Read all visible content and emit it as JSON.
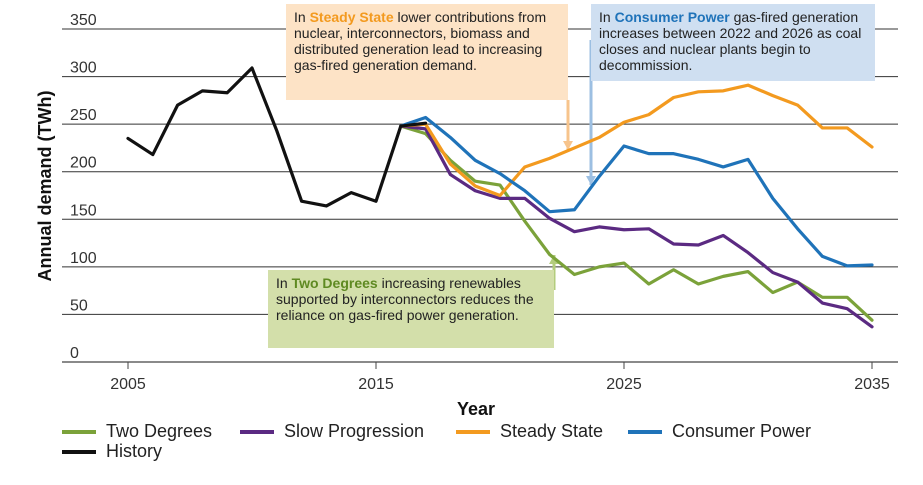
{
  "chart_data": {
    "type": "line",
    "xlabel": "Year",
    "ylabel": "Annual demand (TWh)",
    "xlim": [
      2005,
      2035
    ],
    "ylim": [
      0,
      350
    ],
    "x_ticks": [
      "2005",
      "2015",
      "2025",
      "2035"
    ],
    "y_ticks": [
      "0",
      "50",
      "100",
      "150",
      "200",
      "250",
      "300",
      "350"
    ],
    "grid": "horizontal",
    "legend_position": "bottom",
    "series": [
      {
        "name": "History",
        "color": "#111111",
        "x": [
          2005,
          2006,
          2007,
          2008,
          2009,
          2010,
          2011,
          2012,
          2013,
          2014,
          2015,
          2016,
          2017
        ],
        "y": [
          235,
          218,
          270,
          285,
          283,
          309,
          243,
          169,
          164,
          178,
          169,
          248,
          251
        ]
      },
      {
        "name": "Two Degrees",
        "color": "#7ba23a",
        "x": [
          2016,
          2017,
          2018,
          2019,
          2020,
          2021,
          2022,
          2023,
          2024,
          2025,
          2026,
          2027,
          2028,
          2029,
          2030,
          2031,
          2032,
          2033,
          2034,
          2035
        ],
        "y": [
          248,
          240,
          212,
          190,
          186,
          148,
          113,
          92,
          100,
          104,
          82,
          97,
          82,
          90,
          95,
          73,
          84,
          68,
          68,
          44
        ]
      },
      {
        "name": "Slow Progression",
        "color": "#5b2a82",
        "x": [
          2016,
          2017,
          2018,
          2019,
          2020,
          2021,
          2022,
          2023,
          2024,
          2025,
          2026,
          2027,
          2028,
          2029,
          2030,
          2031,
          2032,
          2033,
          2034,
          2035
        ],
        "y": [
          248,
          245,
          197,
          180,
          172,
          172,
          151,
          137,
          142,
          139,
          140,
          124,
          123,
          133,
          115,
          94,
          84,
          62,
          56,
          37
        ]
      },
      {
        "name": "Steady State",
        "color": "#f39a1f",
        "x": [
          2016,
          2017,
          2018,
          2019,
          2020,
          2021,
          2022,
          2023,
          2024,
          2025,
          2026,
          2027,
          2028,
          2029,
          2030,
          2031,
          2032,
          2033,
          2034,
          2035
        ],
        "y": [
          248,
          250,
          208,
          185,
          175,
          205,
          214,
          225,
          236,
          252,
          260,
          278,
          284,
          285,
          291,
          280,
          270,
          246,
          246,
          226
        ]
      },
      {
        "name": "Consumer Power",
        "color": "#1f73b9",
        "x": [
          2016,
          2017,
          2018,
          2019,
          2020,
          2021,
          2022,
          2023,
          2024,
          2025,
          2026,
          2027,
          2028,
          2029,
          2030,
          2031,
          2032,
          2033,
          2034,
          2035
        ],
        "y": [
          248,
          257,
          236,
          212,
          198,
          180,
          158,
          160,
          195,
          227,
          219,
          219,
          213,
          205,
          213,
          172,
          140,
          111,
          101,
          102
        ]
      }
    ],
    "legend_entries": [
      "Two Degrees",
      "Slow Progression",
      "Steady State",
      "Consumer Power",
      "History"
    ],
    "annotations": [
      {
        "id": "steady",
        "prefix": "In ",
        "highlight": "Steady State",
        "highlight_color": "#f39a1f",
        "text": " lower contributions from nuclear, interconnectors, biomass and distributed generation lead to increasing gas-fired generation demand.",
        "background": "#fde3c6",
        "arrow_color": "#f7c48c"
      },
      {
        "id": "consumer",
        "prefix": "In ",
        "highlight": "Consumer Power",
        "highlight_color": "#1f73b9",
        "text": " gas-fired generation increases between 2022 and 2026 as coal closes and nuclear plants begin to decommission.",
        "background": "#cfdff1",
        "arrow_color": "#9cbfe2"
      },
      {
        "id": "twodeg",
        "prefix": "In ",
        "highlight": "Two Degrees",
        "highlight_color": "#5f8a22",
        "text": " increasing renewables supported by interconnectors reduces the reliance on gas-fired power generation.",
        "background": "#d3dfaa",
        "arrow_color": "#b3cc7d"
      }
    ]
  }
}
